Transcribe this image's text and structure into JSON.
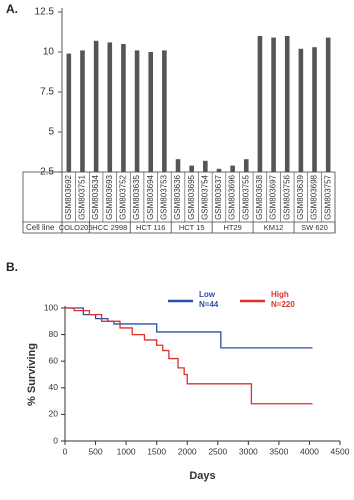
{
  "chart_data": [
    {
      "type": "bar",
      "panel_label": "A.",
      "row_label": "Cell line",
      "color": "#555555",
      "ylim": [
        2.5,
        12.5
      ],
      "yticks": [
        2.5,
        5,
        7.5,
        10,
        12.5
      ],
      "groups": [
        {
          "label": "COLO205",
          "categories": [
            "GSM803692",
            "GSM803751"
          ],
          "values": [
            9.9,
            10.1
          ]
        },
        {
          "label": "HCC 2998",
          "categories": [
            "GSM803634",
            "GSM803693",
            "GSM803752"
          ],
          "values": [
            10.7,
            10.6,
            10.5
          ]
        },
        {
          "label": "HCT 116",
          "categories": [
            "GSM803635",
            "GSM803694",
            "GSM803753"
          ],
          "values": [
            10.1,
            10.0,
            10.1
          ]
        },
        {
          "label": "HCT 15",
          "categories": [
            "GSM803636",
            "GSM803695",
            "GSM803754"
          ],
          "values": [
            3.3,
            2.9,
            3.2
          ]
        },
        {
          "label": "HT29",
          "categories": [
            "GSM803637",
            "GSM803696",
            "GSM803755"
          ],
          "values": [
            2.7,
            2.9,
            3.3
          ]
        },
        {
          "label": "KM12",
          "categories": [
            "GSM803638",
            "GSM803697",
            "GSM803756"
          ],
          "values": [
            11.0,
            10.9,
            11.0
          ]
        },
        {
          "label": "SW 620",
          "categories": [
            "GSM803639",
            "GSM803698",
            "GSM803757"
          ],
          "values": [
            10.2,
            10.3,
            10.9
          ]
        }
      ]
    },
    {
      "type": "survival",
      "panel_label": "B.",
      "xlabel": "Days",
      "ylabel": "% Surviving",
      "xlim": [
        0,
        4500
      ],
      "ylim": [
        0,
        100
      ],
      "xticks": [
        0,
        500,
        1000,
        1500,
        2000,
        2500,
        3000,
        3500,
        4000,
        4500
      ],
      "yticks": [
        0,
        20,
        40,
        60,
        80,
        100
      ],
      "series": [
        {
          "name": "Low",
          "n_label": "N=44",
          "color": "#2f4fa8",
          "x": [
            0,
            300,
            300,
            500,
            500,
            700,
            700,
            800,
            800,
            1500,
            1500,
            2550,
            2550,
            4050
          ],
          "values": [
            100,
            100,
            95,
            95,
            92,
            92,
            90,
            90,
            88,
            88,
            82,
            82,
            70,
            70
          ]
        },
        {
          "name": "High",
          "n_label": "N=220",
          "color": "#e0302a",
          "x": [
            0,
            150,
            150,
            400,
            400,
            600,
            600,
            900,
            900,
            1100,
            1100,
            1300,
            1300,
            1500,
            1500,
            1600,
            1600,
            1700,
            1700,
            1850,
            1850,
            1950,
            1950,
            2000,
            2000,
            3050,
            3050,
            4050
          ],
          "values": [
            100,
            100,
            98,
            98,
            95,
            95,
            90,
            90,
            85,
            85,
            80,
            80,
            76,
            76,
            72,
            72,
            68,
            68,
            62,
            62,
            55,
            55,
            50,
            50,
            43,
            43,
            28,
            28
          ]
        }
      ]
    }
  ]
}
